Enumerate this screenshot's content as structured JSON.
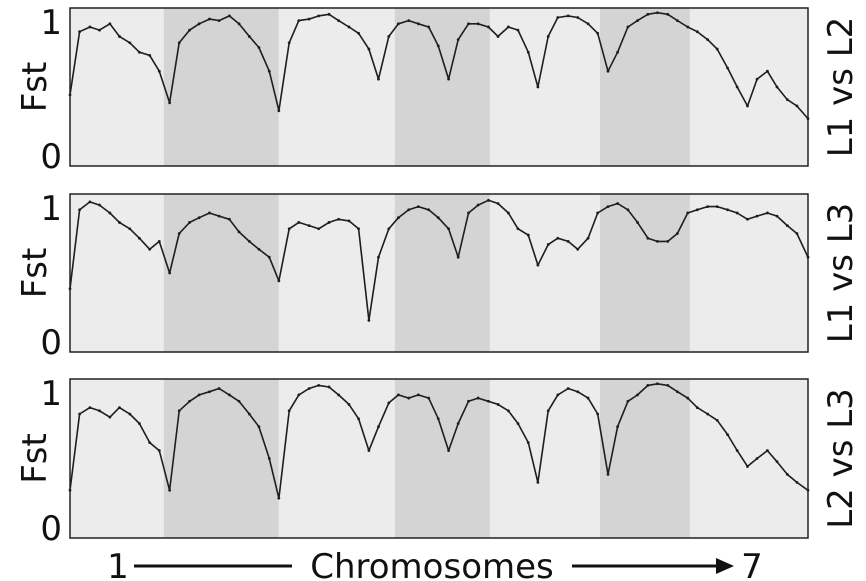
{
  "chart_data": [
    {
      "type": "line",
      "title": "",
      "xlabel": "Chromosomes",
      "ylabel": "Fst",
      "ylim": [
        0,
        1
      ],
      "y_ticks": [
        "0",
        "1"
      ],
      "x_start_label": "1",
      "x_end_label": "7",
      "panel_label": "L1 vs L2",
      "chromosomes": [
        {
          "id": 1,
          "x_start": 0,
          "x_end": 0.127
        },
        {
          "id": 2,
          "x_start": 0.127,
          "x_end": 0.283
        },
        {
          "id": 3,
          "x_start": 0.283,
          "x_end": 0.44
        },
        {
          "id": 4,
          "x_start": 0.44,
          "x_end": 0.569
        },
        {
          "id": 5,
          "x_start": 0.569,
          "x_end": 0.718
        },
        {
          "id": 6,
          "x_start": 0.718,
          "x_end": 0.84
        },
        {
          "id": 7,
          "x_start": 0.84,
          "x_end": 1.0
        }
      ],
      "series": [
        {
          "x": [
            0.0,
            0.013,
            0.027,
            0.04,
            0.054,
            0.067,
            0.081,
            0.094,
            0.108,
            0.121,
            0.135,
            0.148,
            0.162,
            0.175,
            0.189,
            0.202,
            0.216,
            0.229,
            0.243,
            0.256,
            0.27,
            0.283,
            0.297,
            0.31,
            0.324,
            0.337,
            0.351,
            0.364,
            0.378,
            0.391,
            0.405,
            0.418,
            0.432,
            0.445,
            0.459,
            0.472,
            0.486,
            0.499,
            0.513,
            0.526,
            0.54,
            0.553,
            0.567,
            0.58,
            0.594,
            0.607,
            0.621,
            0.634,
            0.648,
            0.661,
            0.675,
            0.688,
            0.702,
            0.715,
            0.729,
            0.742,
            0.756,
            0.769,
            0.783,
            0.796,
            0.81,
            0.823,
            0.837,
            0.85,
            0.864,
            0.877,
            0.891,
            0.904,
            0.918,
            0.931,
            0.945,
            0.958,
            0.972,
            0.985,
            1.0
          ],
          "values": [
            0.45,
            0.85,
            0.88,
            0.86,
            0.9,
            0.82,
            0.78,
            0.72,
            0.7,
            0.6,
            0.4,
            0.78,
            0.86,
            0.9,
            0.93,
            0.92,
            0.95,
            0.9,
            0.82,
            0.75,
            0.6,
            0.35,
            0.78,
            0.92,
            0.93,
            0.95,
            0.96,
            0.92,
            0.88,
            0.84,
            0.74,
            0.55,
            0.82,
            0.9,
            0.92,
            0.9,
            0.88,
            0.76,
            0.55,
            0.8,
            0.9,
            0.9,
            0.88,
            0.82,
            0.88,
            0.86,
            0.72,
            0.5,
            0.82,
            0.94,
            0.95,
            0.94,
            0.9,
            0.84,
            0.6,
            0.72,
            0.88,
            0.92,
            0.96,
            0.97,
            0.96,
            0.92,
            0.88,
            0.85,
            0.8,
            0.74,
            0.62,
            0.5,
            0.38,
            0.55,
            0.6,
            0.5,
            0.42,
            0.38,
            0.3
          ]
        }
      ]
    },
    {
      "type": "line",
      "title": "",
      "xlabel": "Chromosomes",
      "ylabel": "Fst",
      "ylim": [
        0,
        1
      ],
      "y_ticks": [
        "0",
        "1"
      ],
      "x_start_label": "1",
      "x_end_label": "7",
      "panel_label": "L1 vs L3",
      "chromosomes": [
        {
          "id": 1,
          "x_start": 0,
          "x_end": 0.127
        },
        {
          "id": 2,
          "x_start": 0.127,
          "x_end": 0.283
        },
        {
          "id": 3,
          "x_start": 0.283,
          "x_end": 0.44
        },
        {
          "id": 4,
          "x_start": 0.44,
          "x_end": 0.569
        },
        {
          "id": 5,
          "x_start": 0.569,
          "x_end": 0.718
        },
        {
          "id": 6,
          "x_start": 0.718,
          "x_end": 0.84
        },
        {
          "id": 7,
          "x_start": 0.84,
          "x_end": 1.0
        }
      ],
      "series": [
        {
          "x": [
            0.0,
            0.013,
            0.027,
            0.04,
            0.054,
            0.067,
            0.081,
            0.094,
            0.108,
            0.121,
            0.135,
            0.148,
            0.162,
            0.175,
            0.189,
            0.202,
            0.216,
            0.229,
            0.243,
            0.256,
            0.27,
            0.283,
            0.297,
            0.31,
            0.324,
            0.337,
            0.351,
            0.364,
            0.378,
            0.391,
            0.405,
            0.418,
            0.432,
            0.445,
            0.459,
            0.472,
            0.486,
            0.499,
            0.513,
            0.526,
            0.54,
            0.553,
            0.567,
            0.58,
            0.594,
            0.607,
            0.621,
            0.634,
            0.648,
            0.661,
            0.675,
            0.688,
            0.702,
            0.715,
            0.729,
            0.742,
            0.756,
            0.769,
            0.783,
            0.796,
            0.81,
            0.823,
            0.837,
            0.85,
            0.864,
            0.877,
            0.891,
            0.904,
            0.918,
            0.931,
            0.945,
            0.958,
            0.972,
            0.985,
            1.0
          ],
          "values": [
            0.4,
            0.9,
            0.95,
            0.93,
            0.88,
            0.82,
            0.78,
            0.72,
            0.65,
            0.7,
            0.5,
            0.75,
            0.82,
            0.85,
            0.88,
            0.86,
            0.84,
            0.76,
            0.7,
            0.65,
            0.6,
            0.45,
            0.78,
            0.82,
            0.8,
            0.78,
            0.82,
            0.84,
            0.83,
            0.78,
            0.2,
            0.6,
            0.78,
            0.85,
            0.9,
            0.92,
            0.9,
            0.85,
            0.78,
            0.6,
            0.88,
            0.93,
            0.96,
            0.94,
            0.88,
            0.78,
            0.74,
            0.55,
            0.68,
            0.72,
            0.7,
            0.65,
            0.72,
            0.88,
            0.92,
            0.94,
            0.9,
            0.82,
            0.72,
            0.7,
            0.7,
            0.75,
            0.88,
            0.9,
            0.92,
            0.92,
            0.9,
            0.88,
            0.84,
            0.86,
            0.88,
            0.86,
            0.8,
            0.75,
            0.6
          ]
        }
      ]
    },
    {
      "type": "line",
      "title": "",
      "xlabel": "Chromosomes",
      "ylabel": "Fst",
      "ylim": [
        0,
        1
      ],
      "y_ticks": [
        "0",
        "1"
      ],
      "x_start_label": "1",
      "x_end_label": "7",
      "panel_label": "L2 vs L3",
      "chromosomes": [
        {
          "id": 1,
          "x_start": 0,
          "x_end": 0.127
        },
        {
          "id": 2,
          "x_start": 0.127,
          "x_end": 0.283
        },
        {
          "id": 3,
          "x_start": 0.283,
          "x_end": 0.44
        },
        {
          "id": 4,
          "x_start": 0.44,
          "x_end": 0.569
        },
        {
          "id": 5,
          "x_start": 0.569,
          "x_end": 0.718
        },
        {
          "id": 6,
          "x_start": 0.718,
          "x_end": 0.84
        },
        {
          "id": 7,
          "x_start": 0.84,
          "x_end": 1.0
        }
      ],
      "series": [
        {
          "x": [
            0.0,
            0.013,
            0.027,
            0.04,
            0.054,
            0.067,
            0.081,
            0.094,
            0.108,
            0.121,
            0.135,
            0.148,
            0.162,
            0.175,
            0.189,
            0.202,
            0.216,
            0.229,
            0.243,
            0.256,
            0.27,
            0.283,
            0.297,
            0.31,
            0.324,
            0.337,
            0.351,
            0.364,
            0.378,
            0.391,
            0.405,
            0.418,
            0.432,
            0.445,
            0.459,
            0.472,
            0.486,
            0.499,
            0.513,
            0.526,
            0.54,
            0.553,
            0.567,
            0.58,
            0.594,
            0.607,
            0.621,
            0.634,
            0.648,
            0.661,
            0.675,
            0.688,
            0.702,
            0.715,
            0.729,
            0.742,
            0.756,
            0.769,
            0.783,
            0.796,
            0.81,
            0.823,
            0.837,
            0.85,
            0.864,
            0.877,
            0.891,
            0.904,
            0.918,
            0.931,
            0.945,
            0.958,
            0.972,
            0.985,
            1.0
          ],
          "values": [
            0.3,
            0.78,
            0.82,
            0.8,
            0.76,
            0.82,
            0.78,
            0.72,
            0.6,
            0.55,
            0.3,
            0.8,
            0.86,
            0.9,
            0.92,
            0.94,
            0.9,
            0.86,
            0.78,
            0.7,
            0.5,
            0.25,
            0.8,
            0.9,
            0.94,
            0.96,
            0.95,
            0.9,
            0.84,
            0.75,
            0.55,
            0.7,
            0.85,
            0.9,
            0.88,
            0.9,
            0.88,
            0.75,
            0.55,
            0.72,
            0.86,
            0.88,
            0.86,
            0.84,
            0.8,
            0.72,
            0.6,
            0.35,
            0.8,
            0.9,
            0.94,
            0.92,
            0.88,
            0.78,
            0.4,
            0.7,
            0.86,
            0.9,
            0.96,
            0.97,
            0.96,
            0.92,
            0.88,
            0.82,
            0.78,
            0.74,
            0.65,
            0.55,
            0.45,
            0.5,
            0.55,
            0.48,
            0.4,
            0.35,
            0.3
          ]
        }
      ]
    }
  ]
}
